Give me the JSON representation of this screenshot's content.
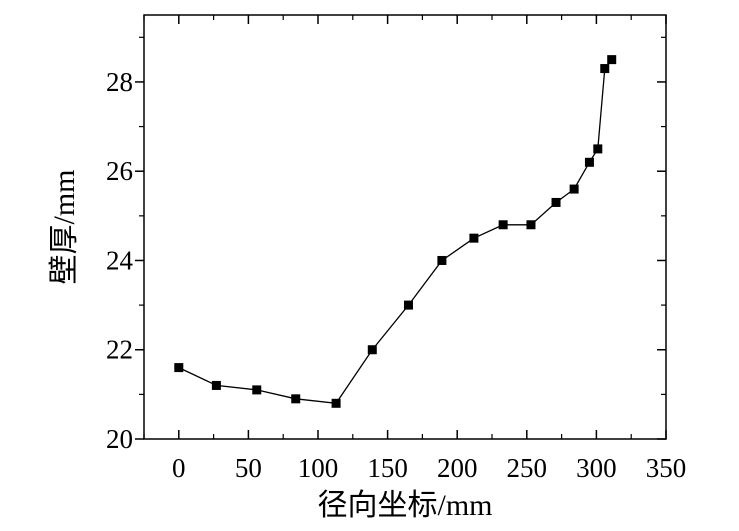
{
  "chart_data": {
    "type": "line",
    "xlabel": "径向坐标/mm",
    "ylabel": "壁厚/mm",
    "xlim": [
      -25,
      350
    ],
    "ylim": [
      20,
      29.5
    ],
    "x_ticks": [
      0,
      50,
      100,
      150,
      200,
      250,
      300,
      350
    ],
    "y_ticks": [
      20,
      22,
      24,
      26,
      28
    ],
    "x_minor_step": 25,
    "y_minor_step": 1,
    "grid": false,
    "marker": "square",
    "colors": {
      "line": "#000000",
      "marker": "#000000",
      "axis": "#000000"
    },
    "series": [
      {
        "x": [
          0,
          27,
          56,
          84,
          113,
          139,
          165,
          189,
          212,
          233,
          253,
          271,
          284,
          295,
          301,
          306,
          311
        ],
        "y": [
          21.6,
          21.2,
          21.1,
          20.9,
          20.8,
          22.0,
          23.0,
          24.0,
          24.5,
          24.8,
          24.8,
          25.3,
          25.6,
          26.2,
          26.5,
          28.3,
          28.5
        ]
      }
    ]
  }
}
